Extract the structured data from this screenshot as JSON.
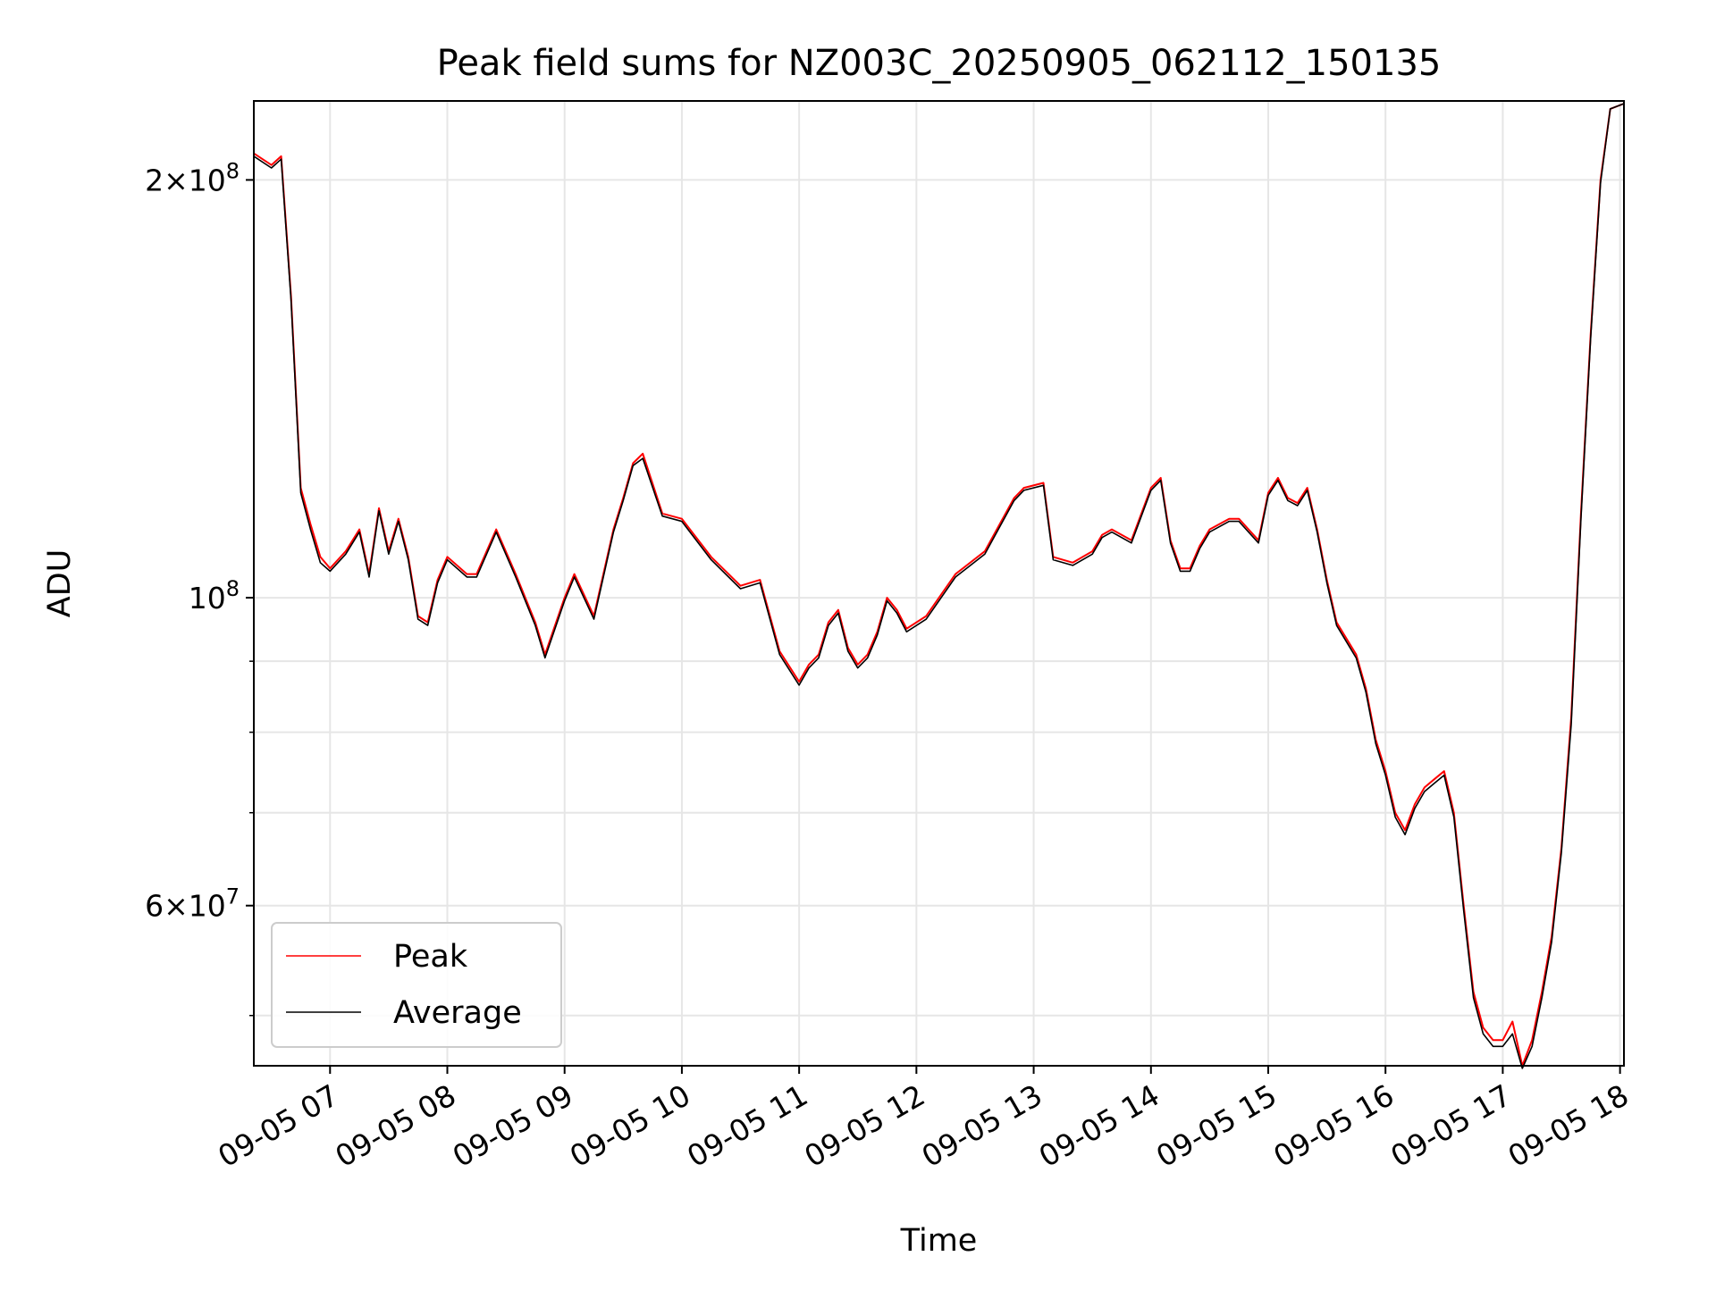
{
  "chart_data": {
    "type": "line",
    "title": "Peak field sums for NZ003C_20250905_062112_150135",
    "xlabel": "Time",
    "ylabel": "ADU",
    "yscale": "log",
    "xlim": [
      "2025-09-05 06:21",
      "2025-09-05 18:02"
    ],
    "ylim": [
      46000000,
      228000000
    ],
    "grid": true,
    "legend_position": "lower-left",
    "x_tick_labels": [
      "09-05 07",
      "09-05 08",
      "09-05 09",
      "09-05 10",
      "09-05 11",
      "09-05 12",
      "09-05 13",
      "09-05 14",
      "09-05 15",
      "09-05 16",
      "09-05 17",
      "09-05 18"
    ],
    "x_ticks": [
      "2025-09-05 07:00",
      "2025-09-05 08:00",
      "2025-09-05 09:00",
      "2025-09-05 10:00",
      "2025-09-05 11:00",
      "2025-09-05 12:00",
      "2025-09-05 13:00",
      "2025-09-05 14:00",
      "2025-09-05 15:00",
      "2025-09-05 16:00",
      "2025-09-05 17:00",
      "2025-09-05 18:00"
    ],
    "y_major_ticks": [
      {
        "value": 60000000,
        "mant": "6",
        "exp": "7"
      },
      {
        "value": 100000000,
        "mant": "",
        "exp": "8"
      },
      {
        "value": 200000000,
        "mant": "2",
        "exp": "8"
      }
    ],
    "y_minor_ticks": [
      50000000,
      70000000,
      80000000,
      90000000
    ],
    "series": [
      {
        "name": "Peak",
        "color": "#ff0000",
        "x": [
          "2025-09-05 06:21",
          "2025-09-05 06:30",
          "2025-09-05 06:35",
          "2025-09-05 06:40",
          "2025-09-05 06:45",
          "2025-09-05 06:50",
          "2025-09-05 06:55",
          "2025-09-05 07:00",
          "2025-09-05 07:08",
          "2025-09-05 07:15",
          "2025-09-05 07:20",
          "2025-09-05 07:25",
          "2025-09-05 07:30",
          "2025-09-05 07:35",
          "2025-09-05 07:40",
          "2025-09-05 07:45",
          "2025-09-05 07:50",
          "2025-09-05 07:55",
          "2025-09-05 08:00",
          "2025-09-05 08:10",
          "2025-09-05 08:15",
          "2025-09-05 08:25",
          "2025-09-05 08:35",
          "2025-09-05 08:45",
          "2025-09-05 08:50",
          "2025-09-05 09:00",
          "2025-09-05 09:05",
          "2025-09-05 09:15",
          "2025-09-05 09:25",
          "2025-09-05 09:30",
          "2025-09-05 09:35",
          "2025-09-05 09:40",
          "2025-09-05 09:50",
          "2025-09-05 10:00",
          "2025-09-05 10:15",
          "2025-09-05 10:30",
          "2025-09-05 10:40",
          "2025-09-05 10:50",
          "2025-09-05 11:00",
          "2025-09-05 11:05",
          "2025-09-05 11:10",
          "2025-09-05 11:15",
          "2025-09-05 11:20",
          "2025-09-05 11:25",
          "2025-09-05 11:30",
          "2025-09-05 11:35",
          "2025-09-05 11:40",
          "2025-09-05 11:45",
          "2025-09-05 11:50",
          "2025-09-05 11:55",
          "2025-09-05 12:05",
          "2025-09-05 12:20",
          "2025-09-05 12:35",
          "2025-09-05 12:50",
          "2025-09-05 12:55",
          "2025-09-05 13:05",
          "2025-09-05 13:10",
          "2025-09-05 13:20",
          "2025-09-05 13:30",
          "2025-09-05 13:35",
          "2025-09-05 13:40",
          "2025-09-05 13:50",
          "2025-09-05 14:00",
          "2025-09-05 14:05",
          "2025-09-05 14:10",
          "2025-09-05 14:15",
          "2025-09-05 14:20",
          "2025-09-05 14:25",
          "2025-09-05 14:30",
          "2025-09-05 14:40",
          "2025-09-05 14:45",
          "2025-09-05 14:55",
          "2025-09-05 15:00",
          "2025-09-05 15:05",
          "2025-09-05 15:10",
          "2025-09-05 15:15",
          "2025-09-05 15:20",
          "2025-09-05 15:25",
          "2025-09-05 15:30",
          "2025-09-05 15:35",
          "2025-09-05 15:45",
          "2025-09-05 15:50",
          "2025-09-05 15:55",
          "2025-09-05 16:00",
          "2025-09-05 16:05",
          "2025-09-05 16:10",
          "2025-09-05 16:15",
          "2025-09-05 16:20",
          "2025-09-05 16:25",
          "2025-09-05 16:30",
          "2025-09-05 16:35",
          "2025-09-05 16:40",
          "2025-09-05 16:45",
          "2025-09-05 16:50",
          "2025-09-05 16:55",
          "2025-09-05 17:00",
          "2025-09-05 17:05",
          "2025-09-05 17:10",
          "2025-09-05 17:15",
          "2025-09-05 17:20",
          "2025-09-05 17:25",
          "2025-09-05 17:30",
          "2025-09-05 17:35",
          "2025-09-05 17:40",
          "2025-09-05 17:45",
          "2025-09-05 17:50",
          "2025-09-05 17:55",
          "2025-09-05 18:02"
        ],
        "y": [
          209000000,
          205000000,
          208000000,
          165000000,
          120000000,
          113000000,
          107000000,
          105000000,
          108000000,
          112000000,
          104000000,
          116000000,
          108000000,
          114000000,
          107000000,
          97000000,
          96000000,
          103000000,
          107000000,
          104000000,
          104000000,
          112000000,
          104000000,
          96000000,
          91000000,
          100000000,
          104000000,
          97000000,
          112000000,
          118000000,
          125000000,
          127000000,
          115000000,
          114000000,
          107000000,
          102000000,
          103000000,
          91500000,
          87000000,
          89500000,
          91000000,
          96000000,
          98000000,
          92000000,
          89500000,
          91000000,
          94500000,
          100000000,
          98000000,
          95000000,
          97000000,
          104000000,
          108000000,
          118000000,
          120000000,
          121000000,
          107000000,
          106000000,
          108000000,
          111000000,
          112000000,
          110000000,
          120000000,
          122000000,
          110000000,
          105000000,
          105000000,
          109000000,
          112000000,
          114000000,
          114000000,
          110000000,
          119000000,
          122000000,
          118000000,
          117000000,
          120000000,
          112000000,
          103000000,
          96000000,
          91000000,
          86000000,
          79000000,
          75000000,
          70000000,
          68000000,
          71000000,
          73000000,
          74000000,
          75000000,
          70000000,
          60000000,
          52000000,
          49000000,
          48000000,
          48000000,
          49500000,
          46000000,
          48000000,
          52000000,
          57000000,
          66000000,
          82000000,
          115000000,
          155000000,
          200000000,
          225000000,
          227000000
        ]
      },
      {
        "name": "Average",
        "color": "#000000",
        "x": [
          "2025-09-05 06:21",
          "2025-09-05 06:30",
          "2025-09-05 06:35",
          "2025-09-05 06:40",
          "2025-09-05 06:45",
          "2025-09-05 06:50",
          "2025-09-05 06:55",
          "2025-09-05 07:00",
          "2025-09-05 07:08",
          "2025-09-05 07:15",
          "2025-09-05 07:20",
          "2025-09-05 07:25",
          "2025-09-05 07:30",
          "2025-09-05 07:35",
          "2025-09-05 07:40",
          "2025-09-05 07:45",
          "2025-09-05 07:50",
          "2025-09-05 07:55",
          "2025-09-05 08:00",
          "2025-09-05 08:10",
          "2025-09-05 08:15",
          "2025-09-05 08:25",
          "2025-09-05 08:35",
          "2025-09-05 08:45",
          "2025-09-05 08:50",
          "2025-09-05 09:00",
          "2025-09-05 09:05",
          "2025-09-05 09:15",
          "2025-09-05 09:25",
          "2025-09-05 09:30",
          "2025-09-05 09:35",
          "2025-09-05 09:40",
          "2025-09-05 09:50",
          "2025-09-05 10:00",
          "2025-09-05 10:15",
          "2025-09-05 10:30",
          "2025-09-05 10:40",
          "2025-09-05 10:50",
          "2025-09-05 11:00",
          "2025-09-05 11:05",
          "2025-09-05 11:10",
          "2025-09-05 11:15",
          "2025-09-05 11:20",
          "2025-09-05 11:25",
          "2025-09-05 11:30",
          "2025-09-05 11:35",
          "2025-09-05 11:40",
          "2025-09-05 11:45",
          "2025-09-05 11:50",
          "2025-09-05 11:55",
          "2025-09-05 12:05",
          "2025-09-05 12:20",
          "2025-09-05 12:35",
          "2025-09-05 12:50",
          "2025-09-05 12:55",
          "2025-09-05 13:05",
          "2025-09-05 13:10",
          "2025-09-05 13:20",
          "2025-09-05 13:30",
          "2025-09-05 13:35",
          "2025-09-05 13:40",
          "2025-09-05 13:50",
          "2025-09-05 14:00",
          "2025-09-05 14:05",
          "2025-09-05 14:10",
          "2025-09-05 14:15",
          "2025-09-05 14:20",
          "2025-09-05 14:25",
          "2025-09-05 14:30",
          "2025-09-05 14:40",
          "2025-09-05 14:45",
          "2025-09-05 14:55",
          "2025-09-05 15:00",
          "2025-09-05 15:05",
          "2025-09-05 15:10",
          "2025-09-05 15:15",
          "2025-09-05 15:20",
          "2025-09-05 15:25",
          "2025-09-05 15:30",
          "2025-09-05 15:35",
          "2025-09-05 15:45",
          "2025-09-05 15:50",
          "2025-09-05 15:55",
          "2025-09-05 16:00",
          "2025-09-05 16:05",
          "2025-09-05 16:10",
          "2025-09-05 16:15",
          "2025-09-05 16:20",
          "2025-09-05 16:25",
          "2025-09-05 16:30",
          "2025-09-05 16:35",
          "2025-09-05 16:40",
          "2025-09-05 16:45",
          "2025-09-05 16:50",
          "2025-09-05 16:55",
          "2025-09-05 17:00",
          "2025-09-05 17:05",
          "2025-09-05 17:10",
          "2025-09-05 17:15",
          "2025-09-05 17:20",
          "2025-09-05 17:25",
          "2025-09-05 17:30",
          "2025-09-05 17:35",
          "2025-09-05 17:40",
          "2025-09-05 17:45",
          "2025-09-05 17:50",
          "2025-09-05 17:55",
          "2025-09-05 18:02"
        ],
        "y": [
          208000000,
          204000000,
          207000000,
          164000000,
          119000000,
          112000000,
          106000000,
          104500000,
          107500000,
          111500000,
          103500000,
          115500000,
          107500000,
          113500000,
          106500000,
          96500000,
          95500000,
          102500000,
          106500000,
          103500000,
          103500000,
          111500000,
          103500000,
          95500000,
          90500000,
          99500000,
          103500000,
          96500000,
          111500000,
          117500000,
          124500000,
          126000000,
          114500000,
          113500000,
          106500000,
          101500000,
          102500000,
          91000000,
          86500000,
          89000000,
          90500000,
          95500000,
          97500000,
          91500000,
          89000000,
          90500000,
          94000000,
          99500000,
          97500000,
          94500000,
          96500000,
          103500000,
          107500000,
          117500000,
          119500000,
          120500000,
          106500000,
          105500000,
          107500000,
          110500000,
          111500000,
          109500000,
          119500000,
          121500000,
          109500000,
          104500000,
          104500000,
          108500000,
          111500000,
          113500000,
          113500000,
          109500000,
          118500000,
          121500000,
          117500000,
          116500000,
          119500000,
          111500000,
          102500000,
          95500000,
          90500000,
          85500000,
          78500000,
          74500000,
          69500000,
          67500000,
          70500000,
          72500000,
          73500000,
          74500000,
          69500000,
          59500000,
          51500000,
          48500000,
          47500000,
          47500000,
          48500000,
          45800000,
          47500000,
          51500000,
          56500000,
          65500000,
          81000000,
          114000000,
          154000000,
          199000000,
          225000000,
          227000000
        ]
      }
    ]
  }
}
